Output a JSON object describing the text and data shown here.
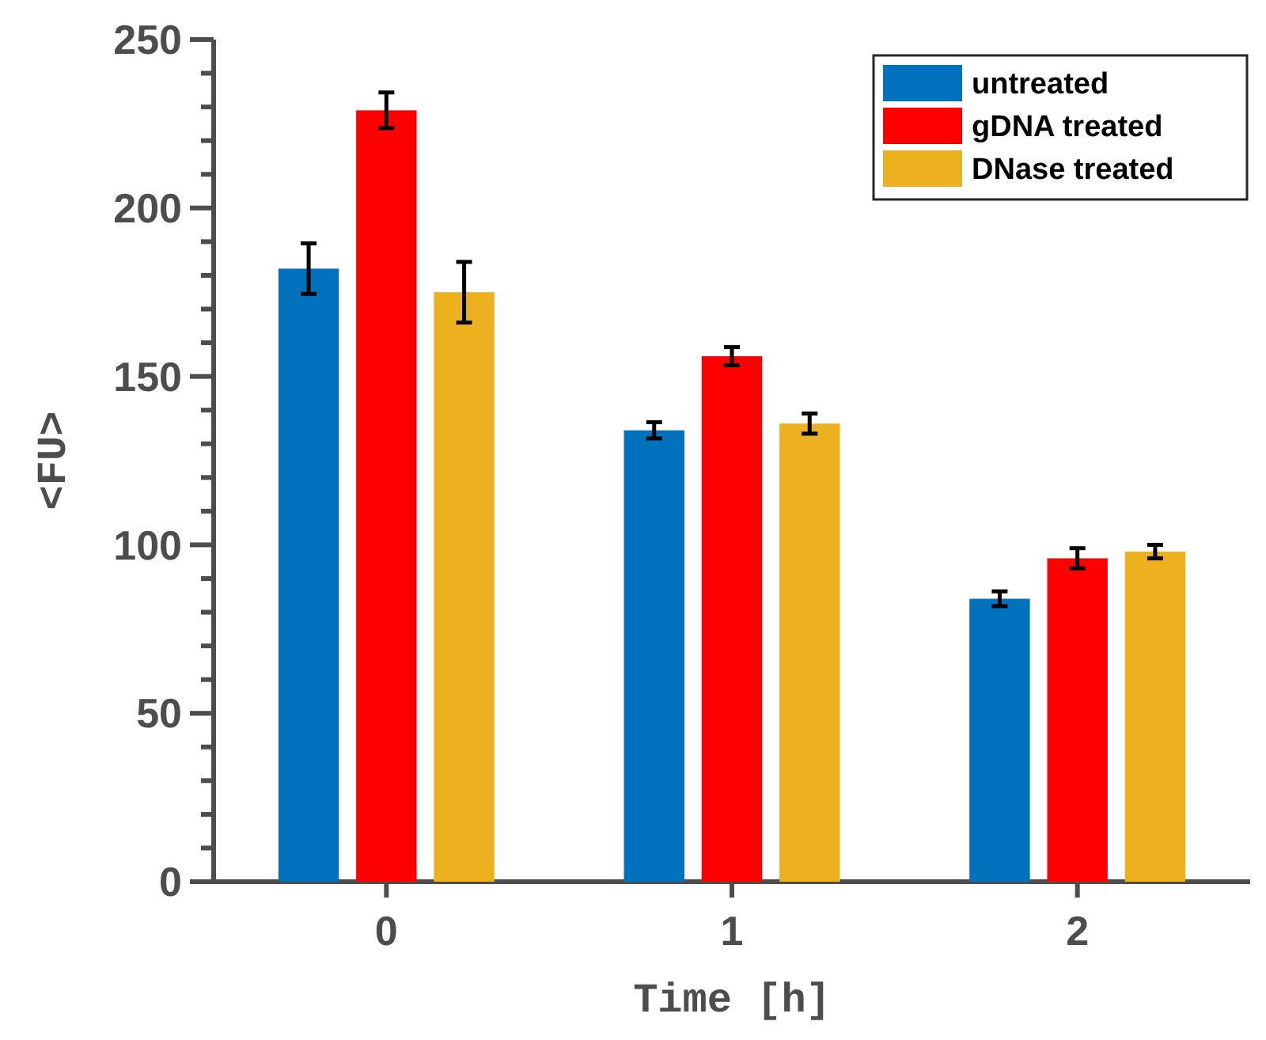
{
  "chart_data": {
    "type": "bar",
    "xlabel": "Time [h]",
    "ylabel": "<FU>",
    "categories": [
      "0",
      "1",
      "2"
    ],
    "series": [
      {
        "name": "untreated",
        "color": "#0072bd",
        "values": [
          182,
          134,
          84
        ],
        "errors": [
          7.5,
          2.4,
          2.2
        ]
      },
      {
        "name": "gDNA treated",
        "color": "#ff0000",
        "values": [
          229,
          156,
          96
        ],
        "errors": [
          5.3,
          2.7,
          3
        ]
      },
      {
        "name": "DNase treated",
        "color": "#edb120",
        "values": [
          175,
          136,
          98
        ],
        "errors": [
          9,
          3,
          2
        ]
      }
    ],
    "ylim": [
      0,
      250
    ],
    "yticks": [
      0,
      {
        "value": 10,
        "label": null
      },
      {
        "value": 20,
        "label": null
      },
      {
        "value": 30,
        "label": null
      },
      {
        "value": 40,
        "label": null
      },
      50,
      {
        "value": 60,
        "label": null
      },
      {
        "value": 70,
        "label": null
      },
      {
        "value": 80,
        "label": null
      },
      {
        "value": 90,
        "label": null
      },
      100,
      {
        "value": 110,
        "label": null
      },
      {
        "value": 120,
        "label": null
      },
      {
        "value": 130,
        "label": null
      },
      {
        "value": 140,
        "label": null
      },
      150,
      {
        "value": 160,
        "label": null
      },
      {
        "value": 170,
        "label": null
      },
      {
        "value": 180,
        "label": null
      },
      {
        "value": 190,
        "label": null
      },
      200,
      {
        "value": 210,
        "label": null
      },
      {
        "value": 220,
        "label": null
      },
      {
        "value": 230,
        "label": null
      },
      {
        "value": 240,
        "label": null
      },
      250
    ],
    "legend": "top right",
    "grid": false
  }
}
